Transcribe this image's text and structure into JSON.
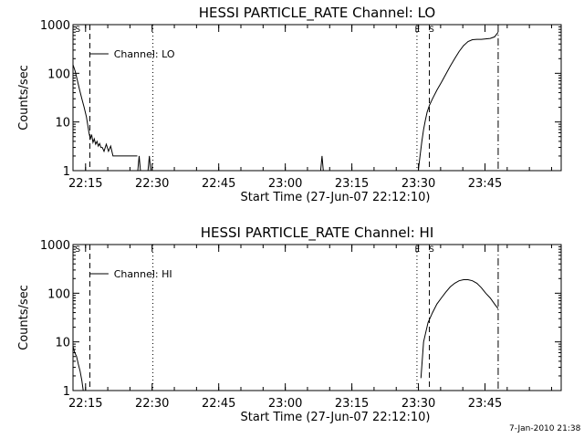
{
  "footer": {
    "date_stamp": "7-Jan-2010 21:38"
  },
  "chart_data": [
    {
      "type": "line",
      "title": "HESSI PARTICLE_RATE Channel: LO",
      "xlabel": "Start Time (27-Jun-07 22:12:10)",
      "ylabel": "Counts/sec",
      "yscale": "log",
      "ylim": [
        1,
        1000
      ],
      "xlim_minutes_after_22_12_10": [
        0,
        110
      ],
      "x_tick_labels": [
        "22:15",
        "22:30",
        "22:45",
        "23:00",
        "23:15",
        "23:30",
        "23:45"
      ],
      "x_tick_minutes": [
        2.833,
        17.833,
        32.833,
        47.833,
        62.833,
        77.833,
        92.833
      ],
      "y_tick_labels": [
        "1",
        "10",
        "100",
        "1000"
      ],
      "y_tick_values": [
        1,
        10,
        100,
        1000
      ],
      "legend": {
        "label": "Channel: LO",
        "placement": "top-left"
      },
      "marker_letters": [
        {
          "text": "S",
          "minute": 0.5
        },
        {
          "text": "E",
          "minute": 77.0
        },
        {
          "text": "S",
          "minute": 80.2
        }
      ],
      "vlines": [
        {
          "minute": 3.8,
          "style": "dashed"
        },
        {
          "minute": 18.0,
          "style": "dotted"
        },
        {
          "minute": 77.5,
          "style": "dotted"
        },
        {
          "minute": 80.3,
          "style": "dashed"
        },
        {
          "minute": 95.8,
          "style": "dashdot"
        }
      ],
      "series": [
        {
          "name": "Channel: LO",
          "segments": [
            {
              "x": [
                0,
                0.5,
                1,
                1.5,
                2,
                2.5,
                3,
                3.3,
                3.6,
                3.9,
                4.2,
                4.5,
                4.8,
                5.1,
                5.4,
                5.7,
                6,
                6.3,
                6.6,
                7,
                7.5,
                8,
                8.5,
                9,
                9.5,
                10,
                10.5,
                11,
                11.5,
                12,
                12.5,
                13,
                13.5,
                14,
                14.5
              ],
              "y": [
                150,
                110,
                70,
                45,
                30,
                20,
                13,
                9,
                6,
                4.5,
                5.5,
                3.8,
                4.5,
                3.5,
                4,
                3.2,
                3.6,
                3,
                3,
                2.5,
                3.5,
                2.5,
                3.2,
                2,
                2,
                2,
                2,
                2,
                2,
                2,
                2,
                2,
                2,
                2,
                2
              ]
            },
            {
              "x": [
                14.6,
                14.9,
                15.2
              ],
              "y": [
                1,
                2,
                1
              ]
            },
            {
              "x": [
                16.9,
                17.2,
                17.5
              ],
              "y": [
                1,
                2,
                1
              ]
            },
            {
              "x": [
                55.8,
                56.1,
                56.4
              ],
              "y": [
                1,
                2,
                1
              ]
            },
            {
              "x": [
                77.8,
                78.2,
                78.6,
                79.0,
                79.4,
                79.8,
                80.3,
                81,
                82,
                83,
                84,
                85,
                86,
                87,
                88,
                89,
                90,
                91,
                92,
                93,
                94,
                95,
                95.8
              ],
              "y": [
                1,
                2,
                4,
                7,
                11,
                16,
                22,
                30,
                45,
                65,
                95,
                140,
                200,
                280,
                370,
                450,
                490,
                500,
                500,
                510,
                520,
                560,
                700
              ]
            }
          ]
        }
      ]
    },
    {
      "type": "line",
      "title": "HESSI PARTICLE_RATE Channel: HI",
      "xlabel": "Start Time (27-Jun-07 22:12:10)",
      "ylabel": "Counts/sec",
      "yscale": "log",
      "ylim": [
        1,
        1000
      ],
      "xlim_minutes_after_22_12_10": [
        0,
        110
      ],
      "x_tick_labels": [
        "22:15",
        "22:30",
        "22:45",
        "23:00",
        "23:15",
        "23:30",
        "23:45"
      ],
      "x_tick_minutes": [
        2.833,
        17.833,
        32.833,
        47.833,
        62.833,
        77.833,
        92.833
      ],
      "y_tick_labels": [
        "1",
        "10",
        "100",
        "1000"
      ],
      "y_tick_values": [
        1,
        10,
        100,
        1000
      ],
      "legend": {
        "label": "Channel: HI",
        "placement": "top-left"
      },
      "marker_letters": [
        {
          "text": "S",
          "minute": 0.5
        },
        {
          "text": "E",
          "minute": 77.0
        },
        {
          "text": "S",
          "minute": 80.2
        }
      ],
      "vlines": [
        {
          "minute": 3.8,
          "style": "dashed"
        },
        {
          "minute": 18.0,
          "style": "dotted"
        },
        {
          "minute": 77.5,
          "style": "dotted"
        },
        {
          "minute": 80.3,
          "style": "dashed"
        },
        {
          "minute": 95.8,
          "style": "dashdot"
        }
      ],
      "series": [
        {
          "name": "Channel: HI",
          "segments": [
            {
              "x": [
                0,
                0.4,
                0.8,
                1.2,
                1.6,
                2.0,
                2.3
              ],
              "y": [
                8,
                6,
                5,
                3.5,
                2.5,
                1.6,
                1
              ]
            },
            {
              "x": [
                78.4,
                79,
                80,
                81,
                82,
                83,
                84,
                85,
                86,
                87,
                88,
                89,
                90,
                91,
                92,
                93,
                94,
                95,
                95.8
              ],
              "y": [
                1.8,
                10,
                25,
                40,
                60,
                80,
                105,
                135,
                160,
                180,
                190,
                190,
                180,
                160,
                130,
                100,
                80,
                60,
                48
              ]
            }
          ]
        }
      ]
    }
  ]
}
